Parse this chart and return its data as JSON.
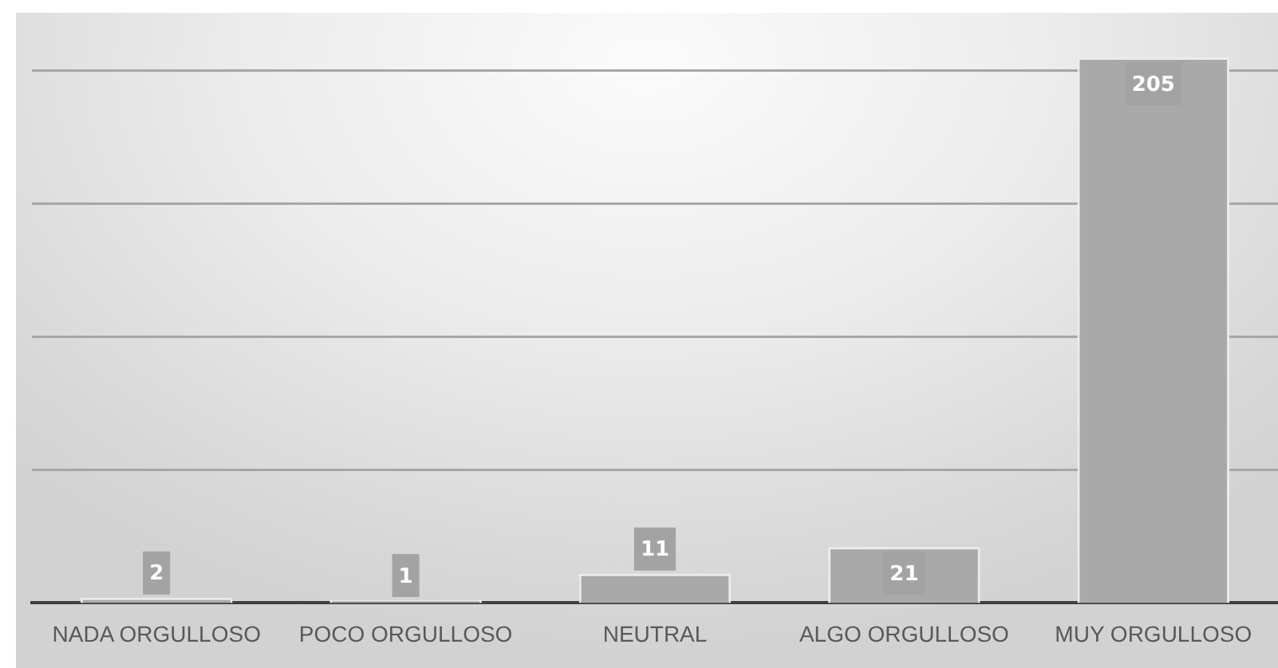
{
  "chart_data": {
    "type": "bar",
    "categories": [
      "NADA ORGULLOSO",
      "POCO ORGULLOSO",
      "NEUTRAL",
      "ALGO ORGULLOSO",
      "MUY ORGULLOSO"
    ],
    "values": [
      2,
      1,
      11,
      21,
      205
    ],
    "color": "#a9a9a9",
    "data_labels": true,
    "ylim": [
      0,
      220
    ],
    "yticks": [
      {
        "value": 50,
        "label": null
      },
      {
        "value": 100,
        "label": null
      },
      {
        "value": 150,
        "label": null
      },
      {
        "value": 200,
        "label": null
      }
    ],
    "grid": "y",
    "tick_labels": "x"
  }
}
